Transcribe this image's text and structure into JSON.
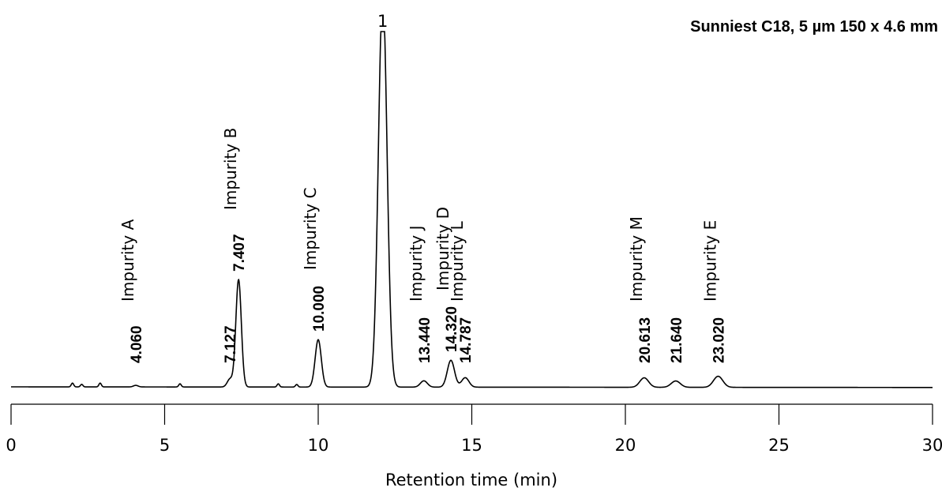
{
  "chart_data": {
    "type": "line",
    "title": "Sunniest C18, 5 µm 150 x 4.6 mm",
    "xlabel": "Retention time (min)",
    "ylabel": "",
    "xlim": [
      0,
      30
    ],
    "xticks": [
      0,
      5,
      10,
      15,
      20,
      25,
      30
    ],
    "main_peak": {
      "label": "1",
      "rt": 12.1,
      "height": 1.25,
      "off_scale": true
    },
    "peaks": [
      {
        "rt": 4.06,
        "label": "4.060",
        "name": "Impurity A",
        "height": 0.005
      },
      {
        "rt": 7.127,
        "label": "7.127",
        "name": "",
        "height": 0.025
      },
      {
        "rt": 7.407,
        "label": "7.407",
        "name": "Impurity B",
        "height": 0.34
      },
      {
        "rt": 10.0,
        "label": "10.000",
        "name": "Impurity C",
        "height": 0.15
      },
      {
        "rt": 13.44,
        "label": "13.440",
        "name": "Impurity J",
        "height": 0.02
      },
      {
        "rt": 14.32,
        "label": "14.320",
        "name": "Impurity D",
        "height": 0.085
      },
      {
        "rt": 14.787,
        "label": "14.787",
        "name": "Impurity L",
        "height": 0.03
      },
      {
        "rt": 20.613,
        "label": "20.613",
        "name": "Impurity M",
        "height": 0.03
      },
      {
        "rt": 21.64,
        "label": "21.640",
        "name": "",
        "height": 0.02
      },
      {
        "rt": 23.02,
        "label": "23.020",
        "name": "Impurity E",
        "height": 0.035
      }
    ],
    "minor_peaks": [
      {
        "rt": 2.0,
        "height": 0.012
      },
      {
        "rt": 2.3,
        "height": 0.008
      },
      {
        "rt": 2.9,
        "height": 0.012
      },
      {
        "rt": 5.5,
        "height": 0.01
      },
      {
        "rt": 8.7,
        "height": 0.01
      },
      {
        "rt": 9.3,
        "height": 0.008
      }
    ]
  }
}
